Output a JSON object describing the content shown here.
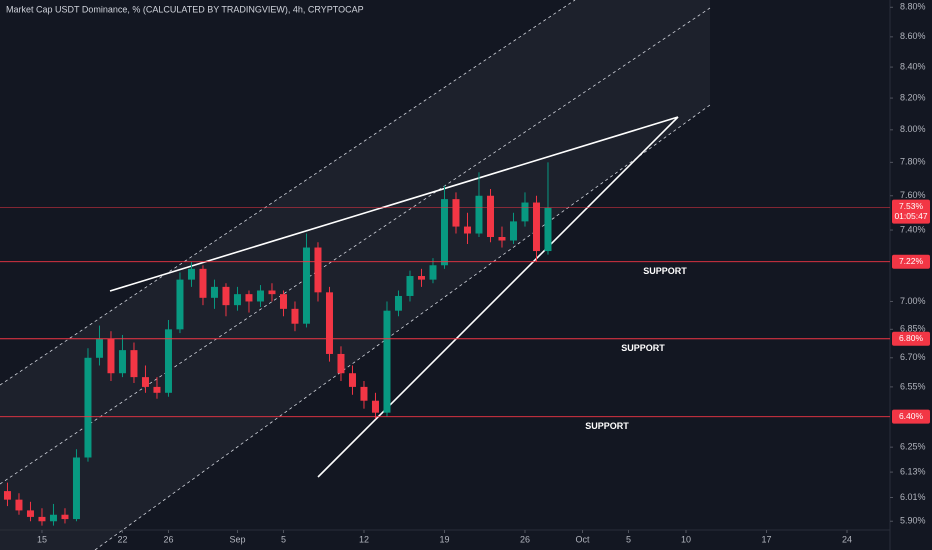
{
  "chart_data": {
    "type": "candlestick",
    "title": "Market Cap USDT Dominance, % (CALCULATED BY TRADINGVIEW), 4h, CRYPTOCAP",
    "log_scale": true,
    "up_color": "#089981",
    "down_color": "#f23645",
    "level_color": "#f23645",
    "xlim": [
      -3.65,
      73.74
    ],
    "ylim": [
      5.86,
      8.85
    ],
    "xticks": [
      {
        "value": 0,
        "label": "15"
      },
      {
        "value": 7,
        "label": "22"
      },
      {
        "value": 11,
        "label": "26"
      },
      {
        "value": 17,
        "label": "Sep"
      },
      {
        "value": 21,
        "label": "5"
      },
      {
        "value": 28,
        "label": "12"
      },
      {
        "value": 35,
        "label": "19"
      },
      {
        "value": 42,
        "label": "26"
      },
      {
        "value": 47,
        "label": "Oct"
      },
      {
        "value": 51,
        "label": "5"
      },
      {
        "value": 56,
        "label": "10"
      },
      {
        "value": 63,
        "label": "17"
      },
      {
        "value": 70,
        "label": "24"
      }
    ],
    "yticks": [
      {
        "value": 8.8,
        "label": "8.80%"
      },
      {
        "value": 8.6,
        "label": "8.60%"
      },
      {
        "value": 8.4,
        "label": "8.40%"
      },
      {
        "value": 8.2,
        "label": "8.20%"
      },
      {
        "value": 8.0,
        "label": "8.00%"
      },
      {
        "value": 7.8,
        "label": "7.80%"
      },
      {
        "value": 7.6,
        "label": "7.60%"
      },
      {
        "value": 7.4,
        "label": "7.40%"
      },
      {
        "value": 7.0,
        "label": "7.00%"
      },
      {
        "value": 6.85,
        "label": "6.85%"
      },
      {
        "value": 6.7,
        "label": "6.70%"
      },
      {
        "value": 6.55,
        "label": "6.55%"
      },
      {
        "value": 6.25,
        "label": "6.25%"
      },
      {
        "value": 6.13,
        "label": "6.13%"
      },
      {
        "value": 6.01,
        "label": "6.01%"
      },
      {
        "value": 5.9,
        "label": "5.90%"
      }
    ],
    "x": [
      -3,
      -2,
      -1,
      0,
      1,
      2,
      3,
      4,
      5,
      6,
      7,
      8,
      9,
      10,
      11,
      12,
      13,
      14,
      15,
      16,
      17,
      18,
      19,
      20,
      21,
      22,
      23,
      24,
      25,
      26,
      27,
      28,
      29,
      30,
      31,
      32,
      33,
      34,
      35,
      36,
      37,
      38,
      39,
      40,
      41,
      42,
      43,
      44
    ],
    "open": [
      6.04,
      6.0,
      5.95,
      5.92,
      5.9,
      5.93,
      5.91,
      6.2,
      6.7,
      6.8,
      6.62,
      6.74,
      6.6,
      6.55,
      6.52,
      6.85,
      7.12,
      7.18,
      7.02,
      7.08,
      6.98,
      7.04,
      7.0,
      7.06,
      7.04,
      6.96,
      6.88,
      7.3,
      7.05,
      6.72,
      6.62,
      6.55,
      6.48,
      6.42,
      6.95,
      7.03,
      7.14,
      7.12,
      7.2,
      7.58,
      7.42,
      7.38,
      7.6,
      7.36,
      7.34,
      7.45,
      7.56,
      7.28
    ],
    "high": [
      6.08,
      6.03,
      5.99,
      5.96,
      5.98,
      5.96,
      6.24,
      6.75,
      6.87,
      6.84,
      6.82,
      6.78,
      6.66,
      6.6,
      6.9,
      7.16,
      7.22,
      7.2,
      7.12,
      7.1,
      7.08,
      7.06,
      7.09,
      7.1,
      7.06,
      7.0,
      7.38,
      7.33,
      7.08,
      6.76,
      6.66,
      6.58,
      6.52,
      7.0,
      7.06,
      7.17,
      7.18,
      7.24,
      7.66,
      7.62,
      7.5,
      7.74,
      7.64,
      7.42,
      7.5,
      7.62,
      7.6,
      7.8
    ],
    "low": [
      5.97,
      5.93,
      5.9,
      5.88,
      5.88,
      5.89,
      5.9,
      6.18,
      6.66,
      6.58,
      6.6,
      6.57,
      6.52,
      6.49,
      6.5,
      6.83,
      7.08,
      6.98,
      6.96,
      6.92,
      6.95,
      6.94,
      6.97,
      7.0,
      6.92,
      6.84,
      6.86,
      7.0,
      6.68,
      6.58,
      6.51,
      6.44,
      6.39,
      6.4,
      6.92,
      7.0,
      7.08,
      7.1,
      7.18,
      7.38,
      7.32,
      7.36,
      7.33,
      7.3,
      7.32,
      7.42,
      7.22,
      7.26
    ],
    "close": [
      6.0,
      5.95,
      5.92,
      5.9,
      5.93,
      5.91,
      6.2,
      6.7,
      6.8,
      6.62,
      6.74,
      6.6,
      6.55,
      6.52,
      6.85,
      7.12,
      7.18,
      7.02,
      7.08,
      6.98,
      7.04,
      7.0,
      7.06,
      7.04,
      6.96,
      6.88,
      7.3,
      7.05,
      6.72,
      6.62,
      6.55,
      6.48,
      6.42,
      6.95,
      7.03,
      7.14,
      7.12,
      7.2,
      7.58,
      7.42,
      7.38,
      7.6,
      7.36,
      7.34,
      7.45,
      7.56,
      7.28,
      7.53
    ],
    "last_price": {
      "value": 7.53,
      "label": "7.53%",
      "countdown": "01:05:47"
    },
    "levels": [
      {
        "value": 7.22,
        "label": "7.22%",
        "note": "SUPPORT"
      },
      {
        "value": 6.8,
        "label": "6.80%",
        "note": "SUPPORT"
      },
      {
        "value": 6.4,
        "label": "6.40%",
        "note": "SUPPORT"
      }
    ]
  }
}
